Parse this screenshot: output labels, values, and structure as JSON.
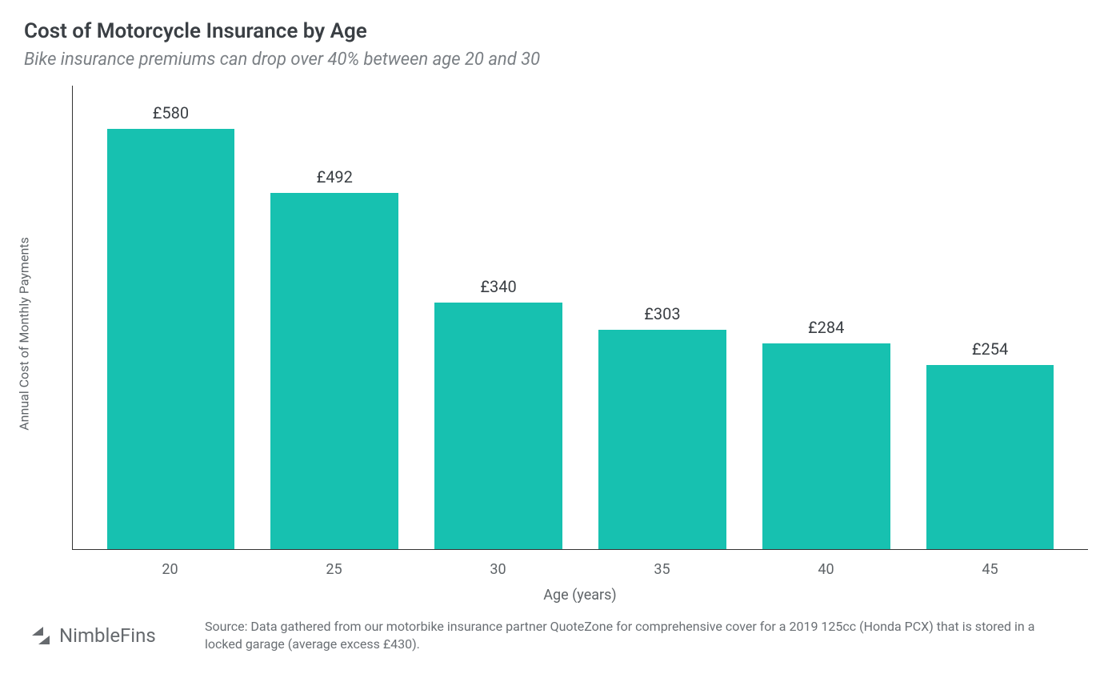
{
  "chart": {
    "type": "bar",
    "title": "Cost of Motorcycle Insurance by Age",
    "subtitle": "Bike insurance premiums can drop over 40% between age 20 and 30",
    "x_label": "Age (years)",
    "y_label": "Annual Cost of Monthly Payments",
    "categories": [
      "20",
      "25",
      "30",
      "35",
      "40",
      "45"
    ],
    "values": [
      580,
      492,
      340,
      303,
      284,
      254
    ],
    "value_labels": [
      "£580",
      "£492",
      "£340",
      "£303",
      "£284",
      "£254"
    ],
    "bar_color": "#17c1b0",
    "y_max": 640,
    "y_min": 0,
    "background_color": "#ffffff",
    "axis_line_color": "#333333",
    "title_color": "#3a3f44",
    "subtitle_color": "#7a7f84",
    "label_color": "#5f6468",
    "value_label_color": "#3a3f44",
    "title_fontsize": 26,
    "subtitle_fontsize": 22,
    "axis_label_fontsize": 18,
    "value_label_fontsize": 20,
    "bar_width_ratio": 0.78
  },
  "brand": {
    "name": "NimbleFins",
    "icon_color": "#666a6e",
    "text_color": "#666a6e"
  },
  "source": {
    "text": "Source: Data gathered from our motorbike insurance partner QuoteZone for comprehensive cover for a 2019 125cc (Honda PCX) that is stored in a locked garage (average excess £430)."
  }
}
